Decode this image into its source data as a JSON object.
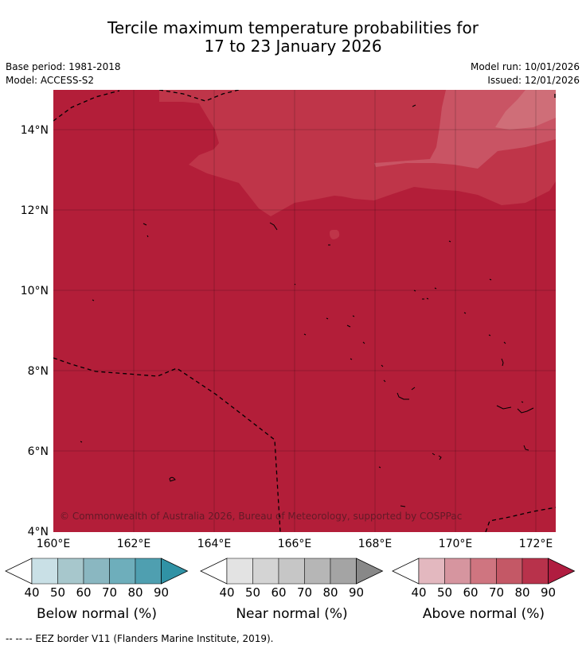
{
  "title": {
    "line1": "Tercile maximum temperature probabilities for",
    "line2": "17 to 23 January 2026"
  },
  "meta": {
    "base_period": "Base period: 1981-2018",
    "model": "Model: ACCESS-S2",
    "model_run": "Model run: 10/01/2026",
    "issued": "Issued: 12/01/2026"
  },
  "map": {
    "lon_labels": [
      "160°E",
      "162°E",
      "164°E",
      "166°E",
      "168°E",
      "170°E",
      "172°E"
    ],
    "lat_labels": [
      "14°N",
      "12°N",
      "10°N",
      "8°N",
      "6°N",
      "4°N"
    ],
    "copyright": "© Commonwealth of Australia 2026, Bureau of Meteorology, supported by COSPPac",
    "colors": {
      "above_80_90": "#b31e39",
      "above_70_80": "#bf3549",
      "above_60_70": "#c95464",
      "above_50_60": "#cf6e78"
    }
  },
  "legend": {
    "ticks": [
      "40",
      "50",
      "60",
      "70",
      "80",
      "90"
    ],
    "colorbars": [
      {
        "title": "Below normal (%)",
        "colors": [
          "#c9e0e6",
          "#a7c7cc",
          "#8ab7c1",
          "#6eaebb",
          "#4f9fb0",
          "#3092a5"
        ]
      },
      {
        "title": "Near normal (%)",
        "colors": [
          "#e3e3e3",
          "#d4d4d4",
          "#c6c6c6",
          "#b6b6b6",
          "#a4a4a4",
          "#888888"
        ]
      },
      {
        "title": "Above normal (%)",
        "colors": [
          "#e3b8bf",
          "#d6959f",
          "#cf7580",
          "#c45866",
          "#b8324b",
          "#b01d40"
        ]
      }
    ]
  },
  "footnote": "-- -- -- EEZ border V11 (Flanders Marine Institute, 2019)."
}
